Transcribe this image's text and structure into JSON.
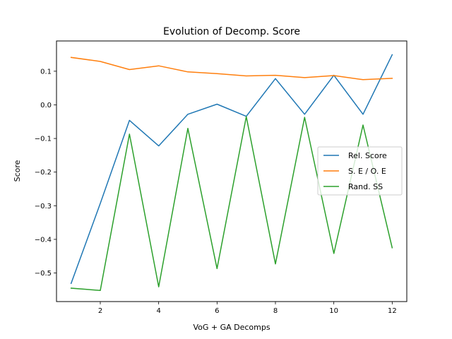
{
  "chart_data": {
    "type": "line",
    "title": "Evolution of Decomp. Score",
    "xlabel": "VoG + GA Decomps",
    "ylabel": "Score",
    "x": [
      1,
      2,
      3,
      4,
      5,
      6,
      7,
      8,
      9,
      10,
      11,
      12
    ],
    "xlim": [
      0.5,
      12.5
    ],
    "ylim": [
      -0.585,
      0.19
    ],
    "xticks": [
      2,
      4,
      6,
      8,
      10,
      12
    ],
    "yticks": [
      -0.5,
      -0.4,
      -0.3,
      -0.2,
      -0.1,
      0.0,
      0.1
    ],
    "ytick_labels": [
      "−0.5",
      "−0.4",
      "−0.3",
      "−0.2",
      "−0.1",
      "0.0",
      "0.1"
    ],
    "grid": false,
    "legend_position": "center-right",
    "series": [
      {
        "name": "Rel. Score",
        "color": "#1f77b4",
        "values": [
          -0.531,
          -0.293,
          -0.046,
          -0.122,
          -0.028,
          0.002,
          -0.034,
          0.078,
          -0.028,
          0.088,
          -0.028,
          0.149
        ]
      },
      {
        "name": "S. E / O. E",
        "color": "#ff7f0e",
        "values": [
          0.141,
          0.129,
          0.105,
          0.116,
          0.098,
          0.093,
          0.086,
          0.088,
          0.081,
          0.087,
          0.075,
          0.079
        ]
      },
      {
        "name": "Rand. SS",
        "color": "#2ca02c",
        "values": [
          -0.545,
          -0.552,
          -0.087,
          -0.541,
          -0.07,
          -0.487,
          -0.035,
          -0.473,
          -0.037,
          -0.442,
          -0.06,
          -0.425
        ]
      }
    ]
  }
}
